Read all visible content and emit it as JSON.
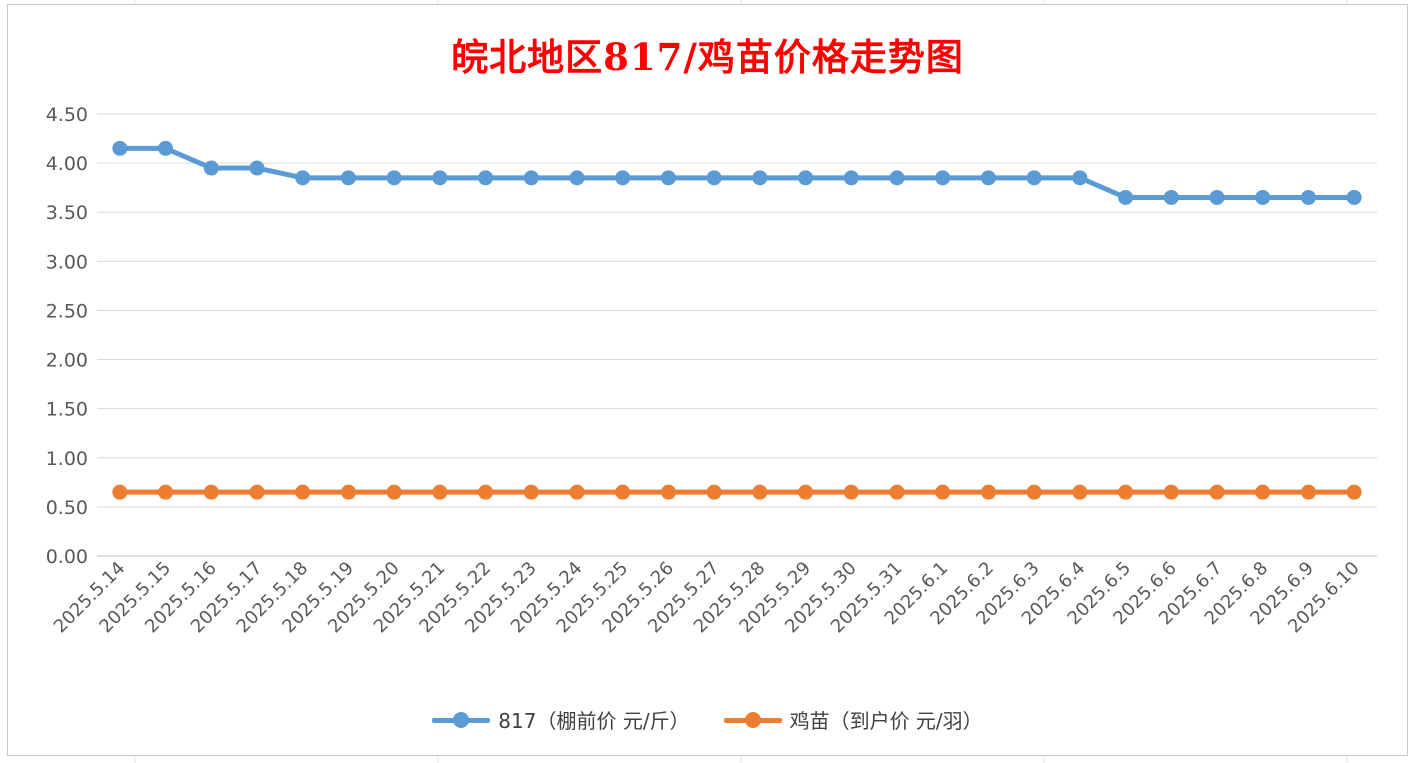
{
  "chart_data": {
    "type": "line",
    "title": "皖北地区817/鸡苗价格走势图",
    "xlabel": "",
    "ylabel": "",
    "categories": [
      "2025.5.14",
      "2025.5.15",
      "2025.5.16",
      "2025.5.17",
      "2025.5.18",
      "2025.5.19",
      "2025.5.20",
      "2025.5.21",
      "2025.5.22",
      "2025.5.23",
      "2025.5.24",
      "2025.5.25",
      "2025.5.26",
      "2025.5.27",
      "2025.5.28",
      "2025.5.29",
      "2025.5.30",
      "2025.5.31",
      "2025.6.1",
      "2025.6.2",
      "2025.6.3",
      "2025.6.4",
      "2025.6.5",
      "2025.6.6",
      "2025.6.7",
      "2025.6.8",
      "2025.6.9",
      "2025.6.10"
    ],
    "y_ticks": [
      "4.50",
      "4.00",
      "3.50",
      "3.00",
      "2.50",
      "2.00",
      "1.50",
      "1.00",
      "0.50",
      "0.00"
    ],
    "ylim": [
      0,
      4.5
    ],
    "grid": true,
    "legend_position": "bottom",
    "series": [
      {
        "name": "817（棚前价 元/斤）",
        "color": "#5b9bd5",
        "values": [
          4.15,
          4.15,
          3.95,
          3.95,
          3.85,
          3.85,
          3.85,
          3.85,
          3.85,
          3.85,
          3.85,
          3.85,
          3.85,
          3.85,
          3.85,
          3.85,
          3.85,
          3.85,
          3.85,
          3.85,
          3.85,
          3.85,
          3.65,
          3.65,
          3.65,
          3.65,
          3.65,
          3.65
        ]
      },
      {
        "name": "鸡苗（到户价 元/羽）",
        "color": "#ed7d31",
        "values": [
          0.65,
          0.65,
          0.65,
          0.65,
          0.65,
          0.65,
          0.65,
          0.65,
          0.65,
          0.65,
          0.65,
          0.65,
          0.65,
          0.65,
          0.65,
          0.65,
          0.65,
          0.65,
          0.65,
          0.65,
          0.65,
          0.65,
          0.65,
          0.65,
          0.65,
          0.65,
          0.65,
          0.65
        ]
      }
    ]
  }
}
